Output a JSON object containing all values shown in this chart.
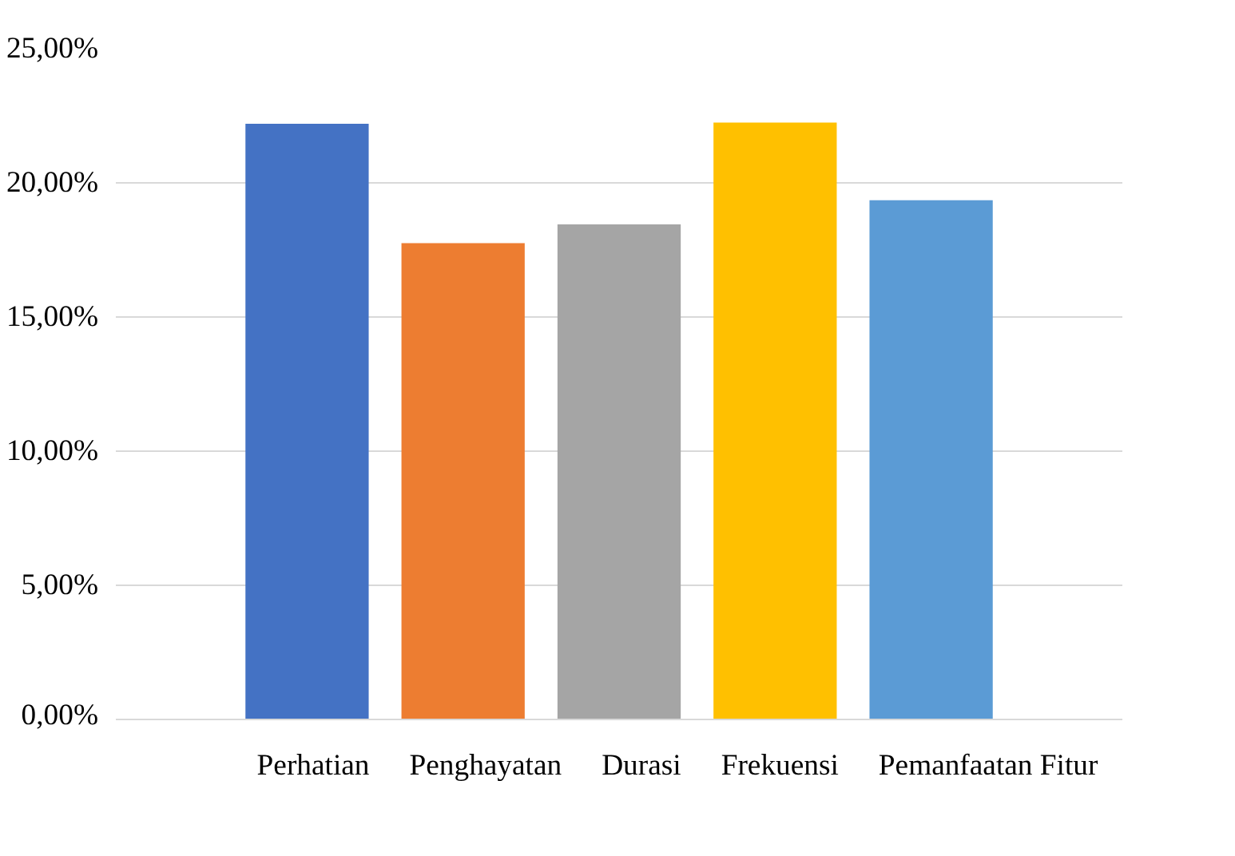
{
  "chart_data": {
    "type": "bar",
    "categories": [
      null
    ],
    "series": [
      {
        "name": "Perhatian",
        "color": "#4472c4",
        "values": [
          22.2
        ]
      },
      {
        "name": "Penghayatan",
        "color": "#ed7d31",
        "values": [
          17.75
        ]
      },
      {
        "name": "Durasi",
        "color": "#a5a5a5",
        "values": [
          18.45
        ]
      },
      {
        "name": "Frekuensi",
        "color": "#ffc000",
        "values": [
          22.25
        ]
      },
      {
        "name": "Pemanfaatan Fitur",
        "color": "#5b9bd5",
        "values": [
          19.35
        ]
      }
    ],
    "ylim": [
      0,
      25
    ],
    "yticks": [
      {
        "value": 0,
        "label": "0,00%"
      },
      {
        "value": 5,
        "label": "5,00%"
      },
      {
        "value": 10,
        "label": "10,00%"
      },
      {
        "value": 15,
        "label": "15,00%"
      },
      {
        "value": 20,
        "label": "20,00%"
      },
      {
        "value": 25,
        "label": "25,00%"
      }
    ],
    "grid": "y",
    "legend": "bottom"
  }
}
